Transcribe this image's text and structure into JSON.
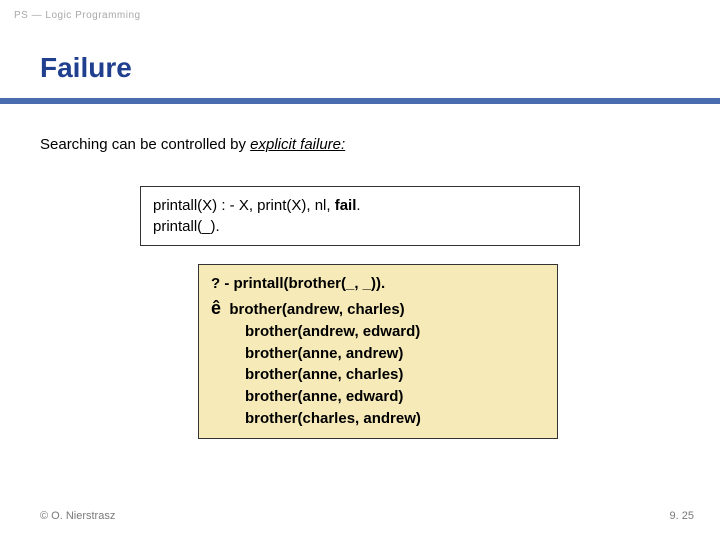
{
  "header_label": "PS — Logic Programming",
  "title": "Failure",
  "intro": {
    "prefix": "Searching can be controlled by ",
    "emph": "explicit failure:"
  },
  "code1": {
    "line1_a": "printall(X) : - X, print(X), nl, ",
    "line1_b": "fail",
    "line1_c": ".",
    "line2": "printall(_)."
  },
  "code2": {
    "query_prefix": "? - ",
    "query_pred": "printall(brother(_, _)).",
    "arrow": "ê",
    "results": [
      "brother(andrew, charles)",
      "brother(andrew, edward)",
      "brother(anne, andrew)",
      "brother(anne, charles)",
      "brother(anne, edward)",
      "brother(charles, andrew)"
    ]
  },
  "footer": {
    "left": "© O. Nierstrasz",
    "right": "9. 25"
  },
  "colors": {
    "title": "#203f8f",
    "underline": "#4a6db0",
    "box2_bg": "#f6ebb8",
    "header_text": "#a8a8a8",
    "footer_text": "#7a7a7a",
    "border": "#333333"
  }
}
